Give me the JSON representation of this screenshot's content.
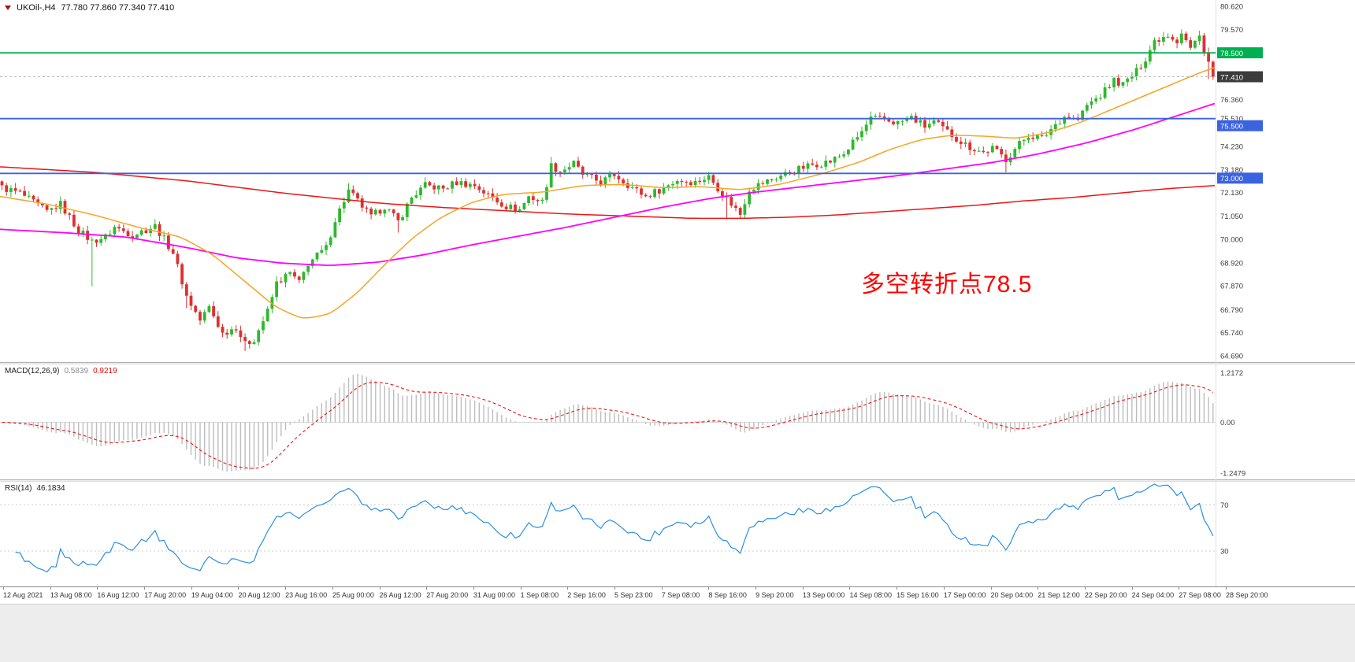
{
  "colors": {
    "background": "#ffffff",
    "up": "#2db92d",
    "down": "#dd3030",
    "ma_fast": "#f5a623",
    "ma_mid": "#ff00ff",
    "ma_slow": "#ee1515",
    "hline_green": "#00b050",
    "hline_blue": "#3b62e0",
    "price_box_current": "#3c3c3c",
    "macd_hist": "#bdbdbd",
    "macd_signal": "#ee1515",
    "rsi_line": "#2a8fe0",
    "axis_text": "#3c3c3c",
    "annotation": "#ff0000"
  },
  "chart_data": [
    {
      "type": "candlestick",
      "title": "UKOil-,H4",
      "symbol": "UKOil",
      "timeframe": "H4",
      "ohlc_text": "77.780 77.860 77.340 77.410",
      "ohlc_display": {
        "open": 77.78,
        "high": 77.86,
        "low": 77.34,
        "close": 77.41
      },
      "ylim": [
        64.43,
        80.91
      ],
      "y_ticks": [
        80.62,
        79.57,
        76.36,
        75.51,
        74.23,
        73.18,
        72.13,
        71.05,
        70.0,
        68.92,
        67.87,
        66.79,
        65.74,
        64.69
      ],
      "x_ticks": [
        "12 Aug 2021",
        "13 Aug 08:00",
        "16 Aug 12:00",
        "17 Aug 20:00",
        "19 Aug 04:00",
        "20 Aug 12:00",
        "23 Aug 16:00",
        "25 Aug 00:00",
        "26 Aug 12:00",
        "27 Aug 20:00",
        "31 Aug 00:00",
        "1 Sep 08:00",
        "2 Sep 16:00",
        "5 Sep 23:00",
        "7 Sep 08:00",
        "8 Sep 16:00",
        "9 Sep 20:00",
        "13 Sep 00:00",
        "14 Sep 08:00",
        "15 Sep 16:00",
        "17 Sep 00:00",
        "20 Sep 04:00",
        "21 Sep 12:00",
        "22 Sep 20:00",
        "24 Sep 04:00",
        "27 Sep 08:00",
        "28 Sep 20:00"
      ],
      "hlines": [
        {
          "value": 78.5,
          "label": "78.500",
          "color": "green",
          "label_offset": 0
        },
        {
          "value": 75.5,
          "label": "75.500",
          "color": "blue",
          "label_offset": 9
        },
        {
          "value": 73.0,
          "label": "73.000",
          "color": "blue",
          "label_offset": 6
        }
      ],
      "current_price": {
        "value": 77.41,
        "label": "77.410"
      },
      "annotation": {
        "text": "多空转折点78.5"
      },
      "num_candles": 270,
      "close_anchors": [
        [
          0,
          72.35
        ],
        [
          4,
          72.1
        ],
        [
          10,
          71.25
        ],
        [
          13,
          71.6
        ],
        [
          17,
          70.4
        ],
        [
          20,
          69.9
        ],
        [
          23,
          70.1
        ],
        [
          25,
          70.55
        ],
        [
          29,
          70.2
        ],
        [
          34,
          70.6
        ],
        [
          38,
          69.4
        ],
        [
          41,
          67.4
        ],
        [
          44,
          66.3
        ],
        [
          46,
          66.9
        ],
        [
          49,
          65.7
        ],
        [
          52,
          66.0
        ],
        [
          54,
          65.2
        ],
        [
          56,
          65.45
        ],
        [
          59,
          66.7
        ],
        [
          61,
          68.0
        ],
        [
          64,
          68.45
        ],
        [
          66,
          68.0
        ],
        [
          68,
          68.9
        ],
        [
          72,
          69.6
        ],
        [
          74,
          70.9
        ],
        [
          77,
          72.2
        ],
        [
          80,
          71.5
        ],
        [
          82,
          71.0
        ],
        [
          85,
          71.5
        ],
        [
          88,
          70.8
        ],
        [
          91,
          71.9
        ],
        [
          94,
          72.45
        ],
        [
          98,
          72.3
        ],
        [
          101,
          72.6
        ],
        [
          105,
          72.45
        ],
        [
          108,
          72.0
        ],
        [
          112,
          71.5
        ],
        [
          115,
          71.35
        ],
        [
          117,
          71.95
        ],
        [
          120,
          71.7
        ],
        [
          122,
          73.35
        ],
        [
          124,
          73.1
        ],
        [
          127,
          73.45
        ],
        [
          129,
          72.95
        ],
        [
          133,
          72.6
        ],
        [
          136,
          72.95
        ],
        [
          140,
          72.35
        ],
        [
          143,
          71.95
        ],
        [
          147,
          72.35
        ],
        [
          150,
          72.7
        ],
        [
          154,
          72.6
        ],
        [
          157,
          72.85
        ],
        [
          161,
          71.85
        ],
        [
          164,
          71.15
        ],
        [
          166,
          72.3
        ],
        [
          170,
          72.65
        ],
        [
          173,
          72.9
        ],
        [
          177,
          73.2
        ],
        [
          180,
          73.4
        ],
        [
          184,
          73.55
        ],
        [
          187,
          73.9
        ],
        [
          191,
          74.9
        ],
        [
          193,
          75.5
        ],
        [
          196,
          75.45
        ],
        [
          199,
          75.3
        ],
        [
          202,
          75.55
        ],
        [
          205,
          75.15
        ],
        [
          207,
          75.35
        ],
        [
          210,
          74.9
        ],
        [
          213,
          74.45
        ],
        [
          215,
          74.2
        ],
        [
          218,
          73.95
        ],
        [
          220,
          74.15
        ],
        [
          223,
          73.65
        ],
        [
          226,
          74.35
        ],
        [
          228,
          74.75
        ],
        [
          231,
          74.6
        ],
        [
          234,
          75.25
        ],
        [
          236,
          75.6
        ],
        [
          239,
          75.45
        ],
        [
          241,
          76.1
        ],
        [
          244,
          76.55
        ],
        [
          247,
          77.25
        ],
        [
          249,
          77.05
        ],
        [
          252,
          77.65
        ],
        [
          254,
          78.25
        ],
        [
          256,
          79.05
        ],
        [
          259,
          79.35
        ],
        [
          261,
          79.05
        ],
        [
          262,
          79.45
        ],
        [
          264,
          78.7
        ],
        [
          266,
          79.25
        ],
        [
          268,
          78.1
        ],
        [
          269,
          77.41
        ]
      ],
      "spike_lows": [
        [
          20,
          67.85
        ],
        [
          41,
          66.85
        ],
        [
          54,
          64.9
        ],
        [
          88,
          70.3
        ],
        [
          161,
          70.95
        ],
        [
          223,
          73.05
        ],
        [
          268,
          77.3
        ]
      ],
      "spike_highs": [
        [
          77,
          72.55
        ],
        [
          122,
          73.75
        ],
        [
          193,
          75.65
        ],
        [
          252,
          78.0
        ],
        [
          256,
          79.2
        ],
        [
          262,
          79.57
        ],
        [
          266,
          79.5
        ]
      ],
      "moving_averages": [
        {
          "name": "ma-slow-red",
          "color_key": "ma_slow",
          "width": 1.5,
          "points": [
            [
              0,
              73.3
            ],
            [
              120,
              73.05
            ],
            [
              240,
              72.65
            ],
            [
              360,
              72.1
            ],
            [
              480,
              71.65
            ],
            [
              560,
              71.45
            ],
            [
              640,
              71.3
            ],
            [
              720,
              71.15
            ],
            [
              800,
              71.05
            ],
            [
              880,
              70.95
            ],
            [
              940,
              70.95
            ],
            [
              1000,
              71.0
            ],
            [
              1060,
              71.1
            ],
            [
              1120,
              71.25
            ],
            [
              1180,
              71.4
            ],
            [
              1240,
              71.55
            ],
            [
              1300,
              71.75
            ],
            [
              1360,
              71.9
            ],
            [
              1420,
              72.1
            ],
            [
              1480,
              72.3
            ],
            [
              1543,
              72.45
            ]
          ]
        },
        {
          "name": "ma-mid-magenta",
          "color_key": "ma_mid",
          "width": 1.8,
          "points": [
            [
              0,
              70.45
            ],
            [
              80,
              70.3
            ],
            [
              160,
              70.1
            ],
            [
              240,
              69.6
            ],
            [
              300,
              69.15
            ],
            [
              360,
              68.9
            ],
            [
              420,
              68.8
            ],
            [
              480,
              68.95
            ],
            [
              540,
              69.3
            ],
            [
              600,
              69.75
            ],
            [
              660,
              70.15
            ],
            [
              720,
              70.55
            ],
            [
              780,
              71.0
            ],
            [
              840,
              71.45
            ],
            [
              900,
              71.85
            ],
            [
              960,
              72.15
            ],
            [
              1020,
              72.4
            ],
            [
              1080,
              72.65
            ],
            [
              1140,
              72.9
            ],
            [
              1200,
              73.2
            ],
            [
              1260,
              73.5
            ],
            [
              1320,
              73.9
            ],
            [
              1380,
              74.4
            ],
            [
              1440,
              75.0
            ],
            [
              1500,
              75.7
            ],
            [
              1543,
              76.2
            ]
          ]
        },
        {
          "name": "ma-fast-orange",
          "color_key": "ma_fast",
          "width": 1.5,
          "points": [
            [
              0,
              71.95
            ],
            [
              60,
              71.6
            ],
            [
              120,
              71.1
            ],
            [
              180,
              70.5
            ],
            [
              230,
              70.1
            ],
            [
              270,
              69.3
            ],
            [
              310,
              68.1
            ],
            [
              350,
              66.9
            ],
            [
              385,
              66.35
            ],
            [
              420,
              66.6
            ],
            [
              455,
              67.6
            ],
            [
              490,
              68.9
            ],
            [
              525,
              70.1
            ],
            [
              560,
              71.0
            ],
            [
              600,
              71.7
            ],
            [
              640,
              72.05
            ],
            [
              690,
              72.15
            ],
            [
              740,
              72.45
            ],
            [
              790,
              72.5
            ],
            [
              840,
              72.35
            ],
            [
              890,
              72.4
            ],
            [
              940,
              72.25
            ],
            [
              990,
              72.5
            ],
            [
              1040,
              72.95
            ],
            [
              1090,
              73.5
            ],
            [
              1130,
              74.1
            ],
            [
              1170,
              74.55
            ],
            [
              1210,
              74.75
            ],
            [
              1250,
              74.7
            ],
            [
              1290,
              74.6
            ],
            [
              1330,
              74.85
            ],
            [
              1370,
              75.3
            ],
            [
              1410,
              75.9
            ],
            [
              1450,
              76.5
            ],
            [
              1490,
              77.1
            ],
            [
              1520,
              77.55
            ],
            [
              1543,
              77.85
            ]
          ]
        }
      ]
    },
    {
      "type": "macd",
      "label": "MACD(12,26,9)",
      "main_value": "0.5839",
      "signal_value": "0.9219",
      "fast": 12,
      "slow": 26,
      "signal": 9,
      "ylim": [
        -1.38,
        1.42
      ],
      "y_ticks": [
        {
          "v": 1.2172,
          "t": "1.2172"
        },
        {
          "v": 0,
          "t": "0.00"
        },
        {
          "v": -1.2479,
          "t": "-1.2479"
        }
      ]
    },
    {
      "type": "rsi",
      "label": "RSI(14)",
      "value": "46.1834",
      "period": 14,
      "levels": [
        70,
        30
      ],
      "ylim": [
        0,
        90
      ]
    }
  ]
}
